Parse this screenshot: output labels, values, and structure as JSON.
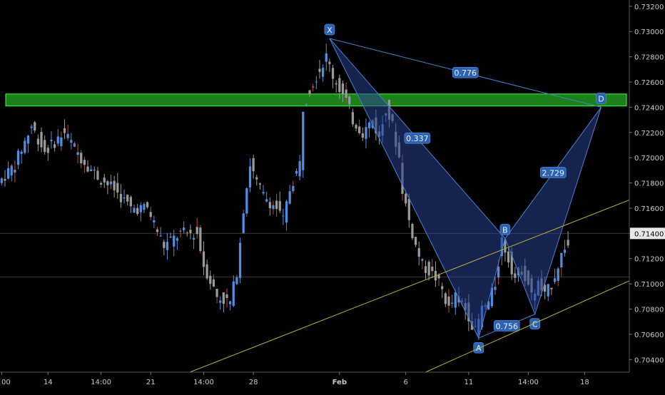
{
  "chart_data": {
    "type": "candlestick",
    "y_axis": {
      "ticks": [
        0.704,
        0.706,
        0.708,
        0.71,
        0.712,
        0.714,
        0.716,
        0.718,
        0.72,
        0.722,
        0.724,
        0.726,
        0.728,
        0.73,
        0.732
      ],
      "tick_labels": [
        "0.70400",
        "0.70600",
        "0.70800",
        "0.71000",
        "0.71200",
        "0.71400",
        "0.71600",
        "0.71800",
        "0.72000",
        "0.72200",
        "0.72400",
        "0.72600",
        "0.72800",
        "0.73000",
        "0.73200"
      ],
      "range": [
        0.703,
        0.7325
      ],
      "current_price_label": "0.71400"
    },
    "x_axis": {
      "tick_labels": [
        "00",
        "14",
        "14:00",
        "21",
        "14:00",
        "28",
        "Feb",
        "6",
        "11",
        "14:00",
        "18"
      ],
      "tick_bars": [
        0,
        14,
        30,
        45,
        61,
        76,
        102,
        122,
        141,
        159,
        176
      ]
    },
    "bar_count": 190,
    "horizontal_lines": [
      0.714,
      0.71055
    ],
    "supply_zone": {
      "y_low": 0.7241,
      "y_high": 0.72505
    },
    "harmonic_pattern": {
      "name": "bat",
      "points": [
        {
          "label": "X",
          "bar": 99,
          "price": 0.72945
        },
        {
          "label": "A",
          "bar": 144,
          "price": 0.7057
        },
        {
          "label": "B",
          "bar": 152,
          "price": 0.7136
        },
        {
          "label": "C",
          "bar": 161,
          "price": 0.7076
        },
        {
          "label": "D",
          "bar": 181,
          "price": 0.724
        }
      ],
      "ratios": [
        {
          "label": "0.776",
          "between": "XB-XD"
        },
        {
          "label": "0.337",
          "between": "XA-AB"
        },
        {
          "label": "2.729",
          "between": "BC-CD"
        },
        {
          "label": "0.756",
          "between": "AB-BC"
        }
      ]
    },
    "channel": [
      {
        "bar1": 50,
        "price1": 0.7023,
        "bar2": 190,
        "price2": 0.7167
      },
      {
        "bar1": 122,
        "price1": 0.7023,
        "bar2": 190,
        "price2": 0.7103
      }
    ],
    "anchors": [
      [
        0,
        0.718
      ],
      [
        5,
        0.7195
      ],
      [
        10,
        0.7225
      ],
      [
        14,
        0.7205
      ],
      [
        20,
        0.722
      ],
      [
        25,
        0.72
      ],
      [
        30,
        0.7185
      ],
      [
        35,
        0.7175
      ],
      [
        40,
        0.716
      ],
      [
        45,
        0.716
      ],
      [
        50,
        0.713
      ],
      [
        55,
        0.714
      ],
      [
        60,
        0.714
      ],
      [
        62,
        0.7115
      ],
      [
        66,
        0.709
      ],
      [
        70,
        0.7085
      ],
      [
        72,
        0.711
      ],
      [
        74,
        0.716
      ],
      [
        76,
        0.7195
      ],
      [
        78,
        0.718
      ],
      [
        80,
        0.717
      ],
      [
        84,
        0.716
      ],
      [
        86,
        0.715
      ],
      [
        88,
        0.7175
      ],
      [
        91,
        0.7195
      ],
      [
        92,
        0.724
      ],
      [
        94,
        0.7255
      ],
      [
        97,
        0.727
      ],
      [
        99,
        0.728
      ],
      [
        101,
        0.7265
      ],
      [
        103,
        0.7255
      ],
      [
        105,
        0.7245
      ],
      [
        107,
        0.723
      ],
      [
        110,
        0.722
      ],
      [
        113,
        0.723
      ],
      [
        115,
        0.7215
      ],
      [
        117,
        0.724
      ],
      [
        119,
        0.7225
      ],
      [
        121,
        0.72
      ],
      [
        122,
        0.7175
      ],
      [
        124,
        0.715
      ],
      [
        126,
        0.713
      ],
      [
        128,
        0.7115
      ],
      [
        130,
        0.711
      ],
      [
        132,
        0.7105
      ],
      [
        134,
        0.7095
      ],
      [
        136,
        0.708
      ],
      [
        138,
        0.709
      ],
      [
        140,
        0.7085
      ],
      [
        142,
        0.7075
      ],
      [
        144,
        0.7062
      ],
      [
        146,
        0.708
      ],
      [
        148,
        0.7085
      ],
      [
        150,
        0.71
      ],
      [
        152,
        0.7135
      ],
      [
        154,
        0.712
      ],
      [
        156,
        0.7105
      ],
      [
        158,
        0.7112
      ],
      [
        160,
        0.71
      ],
      [
        161,
        0.709
      ],
      [
        163,
        0.71
      ],
      [
        165,
        0.709
      ],
      [
        167,
        0.71
      ],
      [
        169,
        0.7115
      ],
      [
        171,
        0.713
      ]
    ]
  }
}
